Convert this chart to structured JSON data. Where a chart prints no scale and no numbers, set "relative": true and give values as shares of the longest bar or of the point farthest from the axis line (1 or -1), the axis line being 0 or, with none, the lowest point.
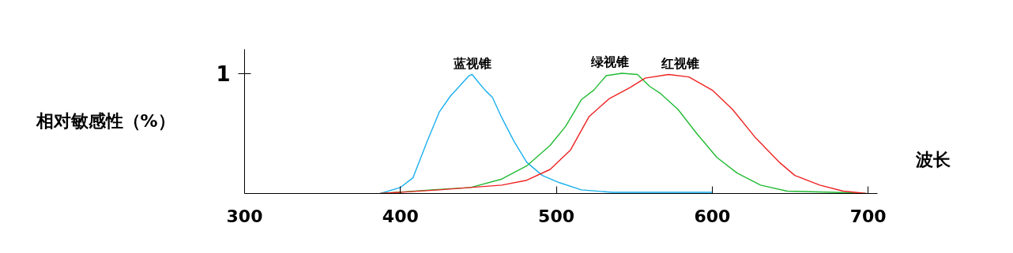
{
  "chart_data": {
    "type": "line",
    "relative": true,
    "xlabel": "波长",
    "ylabel": "相对敏感性（%）",
    "annotations": [
      "1"
    ],
    "xlim": [
      300,
      706
    ],
    "xticks": [
      300,
      400,
      500,
      600,
      700
    ],
    "line_style": "solid",
    "series": [
      {
        "name": "蓝视锥",
        "color": "#1ab0ee",
        "x": [
          387,
          400,
          408,
          417,
          425,
          432,
          437,
          444,
          446,
          451,
          455,
          459,
          465,
          473,
          481,
          491,
          502,
          516,
          536,
          600
        ],
        "values": [
          0,
          0.05,
          0.13,
          0.43,
          0.68,
          0.81,
          0.88,
          0.98,
          0.99,
          0.91,
          0.85,
          0.8,
          0.63,
          0.43,
          0.26,
          0.15,
          0.09,
          0.03,
          0.01,
          0.01
        ]
      },
      {
        "name": "绿视锥",
        "color": "#22bb33",
        "x": [
          387,
          420,
          445,
          465,
          481,
          496,
          506,
          516,
          524,
          532,
          542,
          552,
          560,
          567,
          578,
          590,
          603,
          616,
          631,
          648,
          678,
          699
        ],
        "values": [
          0,
          0.03,
          0.05,
          0.12,
          0.23,
          0.4,
          0.56,
          0.78,
          0.86,
          0.98,
          1.0,
          0.99,
          0.89,
          0.83,
          0.7,
          0.5,
          0.3,
          0.17,
          0.07,
          0.02,
          0.01,
          0
        ]
      },
      {
        "name": "红视锥",
        "color": "#ee2222",
        "x": [
          387,
          425,
          465,
          481,
          496,
          509,
          521,
          534,
          547,
          557,
          572,
          585,
          600,
          613,
          628,
          643,
          653,
          669,
          684,
          699
        ],
        "values": [
          0,
          0.03,
          0.07,
          0.11,
          0.2,
          0.36,
          0.64,
          0.79,
          0.88,
          0.96,
          0.99,
          0.97,
          0.86,
          0.7,
          0.46,
          0.26,
          0.15,
          0.07,
          0.02,
          0
        ]
      }
    ]
  }
}
